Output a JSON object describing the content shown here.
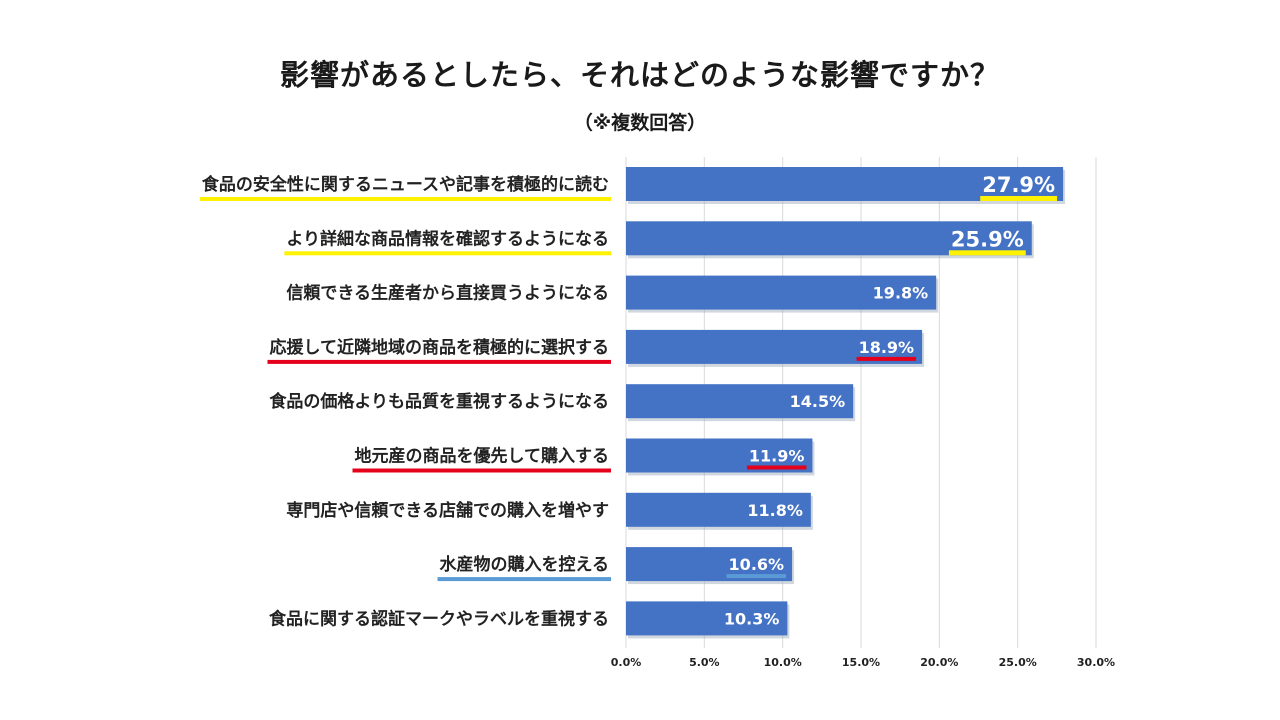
{
  "title": "影響があるとしたら、それはどのような影響ですか？",
  "subtitle": "（※複数回答）",
  "colors": {
    "bar": "#4472C4",
    "yellow": "#FFF200",
    "red": "#E5001C",
    "blue": "#5B9BD5",
    "grid": "#D9D9D9"
  },
  "chart_data": {
    "type": "bar",
    "orientation": "horizontal",
    "title": "影響があるとしたら、それはどのような影響ですか？",
    "subtitle": "（※複数回答）",
    "categories": [
      "食品の安全性に関するニュースや記事を積極的に読む",
      "より詳細な商品情報を確認するようになる",
      "信頼できる生産者から直接買うようになる",
      "応援して近隣地域の商品を積極的に選択する",
      "食品の価格よりも品質を重視するようになる",
      "地元産の商品を優先して購入する",
      "専門店や信頼できる店舗での購入を増やす",
      "水産物の購入を控える",
      "食品に関する認証マークやラベルを重視する"
    ],
    "values": [
      27.9,
      25.9,
      19.8,
      18.9,
      14.5,
      11.9,
      11.8,
      10.6,
      10.3
    ],
    "value_labels": [
      "27.9%",
      "25.9%",
      "19.8%",
      "18.9%",
      "14.5%",
      "11.9%",
      "11.8%",
      "10.6%",
      "10.3%"
    ],
    "highlight": [
      "yellow",
      "yellow",
      "none",
      "red",
      "none",
      "red",
      "none",
      "blue",
      "none"
    ],
    "xlim": [
      0,
      30
    ],
    "xticks": [
      "0.0%",
      "5.0%",
      "10.0%",
      "15.0%",
      "20.0%",
      "25.0%",
      "30.0%"
    ],
    "grid": true,
    "xlabel": "",
    "ylabel": ""
  }
}
